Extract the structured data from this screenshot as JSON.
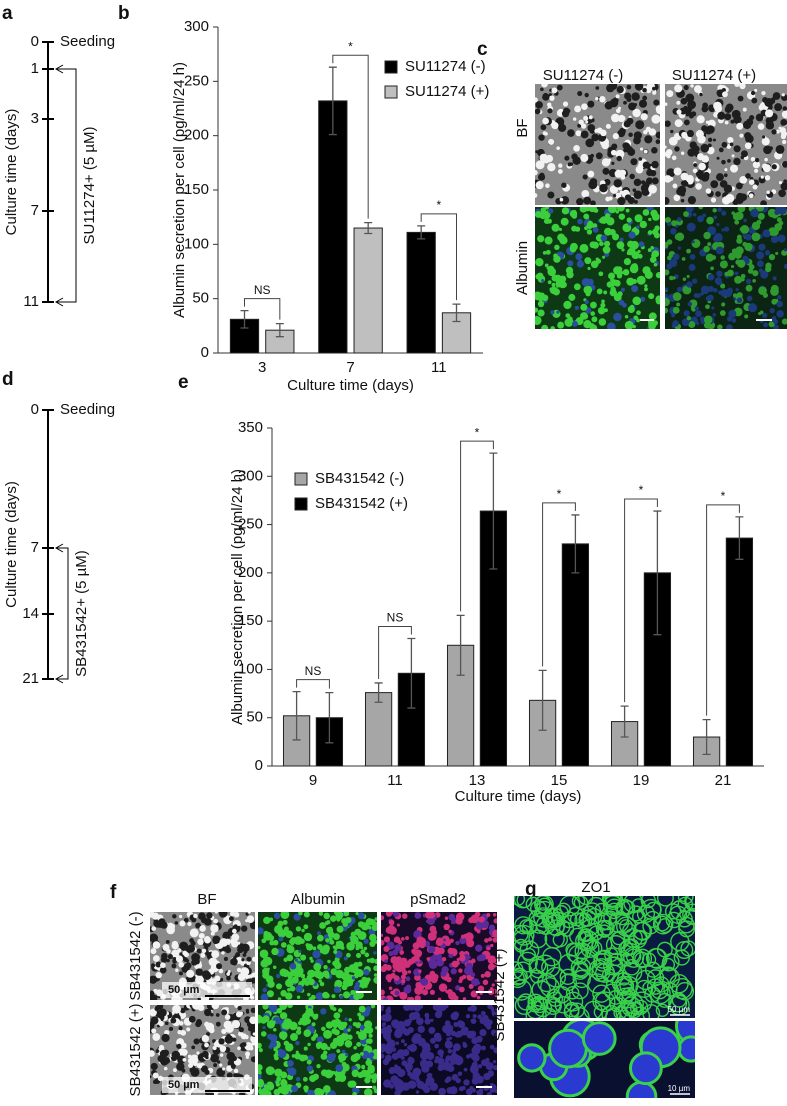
{
  "panel_labels": [
    "a",
    "b",
    "c",
    "d",
    "e",
    "f",
    "g"
  ],
  "timelines": [
    {
      "axis_label": "Culture time (days)",
      "ticks": [
        0,
        1,
        3,
        7,
        11
      ],
      "start_label": "Seeding",
      "treatment": "SU11274+ (5 µM)"
    },
    {
      "axis_label": "Culture time (days)",
      "ticks": [
        0,
        7,
        14,
        21
      ],
      "start_label": "Seeding",
      "treatment": "SB431542+ (5 µM)"
    }
  ],
  "chart_data": [
    {
      "type": "bar",
      "categories": [
        "3",
        "7",
        "11"
      ],
      "series": [
        {
          "name": "SU11274 (-)",
          "color": "#000000",
          "values": [
            31,
            232,
            111
          ],
          "errors": [
            8,
            31,
            6
          ]
        },
        {
          "name": "SU11274 (+)",
          "color": "#bfbfbf",
          "values": [
            21,
            115,
            37
          ],
          "errors": [
            6,
            5,
            8
          ]
        }
      ],
      "annotations": [
        "NS",
        "*",
        "*"
      ],
      "ylim": [
        0,
        300
      ],
      "yticks": [
        0,
        50,
        100,
        150,
        200,
        250,
        300
      ],
      "ylabel": "Albumin secretion per cell (pg/ml/24 h)",
      "xlabel": "Culture time (days)",
      "legend": "upper right"
    },
    {
      "type": "bar",
      "categories": [
        "9",
        "11",
        "13",
        "15",
        "19",
        "21"
      ],
      "series": [
        {
          "name": "SB431542 (-)",
          "color": "#a6a6a6",
          "values": [
            52,
            76,
            125,
            68,
            46,
            30
          ],
          "errors": [
            25,
            10,
            31,
            31,
            16,
            18
          ]
        },
        {
          "name": "SB431542 (+)",
          "color": "#000000",
          "values": [
            50,
            96,
            264,
            230,
            200,
            236
          ],
          "errors": [
            26,
            36,
            60,
            30,
            64,
            22
          ]
        }
      ],
      "annotations": [
        "NS",
        "NS",
        "*",
        "*",
        "*",
        "*"
      ],
      "ylim": [
        0,
        350
      ],
      "yticks": [
        0,
        50,
        100,
        150,
        200,
        250,
        300,
        350
      ],
      "ylabel": "Albumin secretion per cell (pg/ml/24 h)",
      "xlabel": "Culture time (days)",
      "legend": "upper left"
    }
  ],
  "image_panel_c": {
    "columns": [
      "SU11274 (-)",
      "SU11274 (+)"
    ],
    "rows": [
      "BF",
      "Albumin"
    ]
  },
  "image_panel_f": {
    "columns": [
      "BF",
      "Albumin",
      "pSmad2"
    ],
    "rows": [
      "SB431542 (-)",
      "SB431542 (+)"
    ],
    "scale_bar": "50 µm"
  },
  "image_panel_g": {
    "column": "ZO1",
    "row": "SB431542 (+)",
    "scale_bars": [
      "50 µm",
      "10 µm"
    ]
  }
}
